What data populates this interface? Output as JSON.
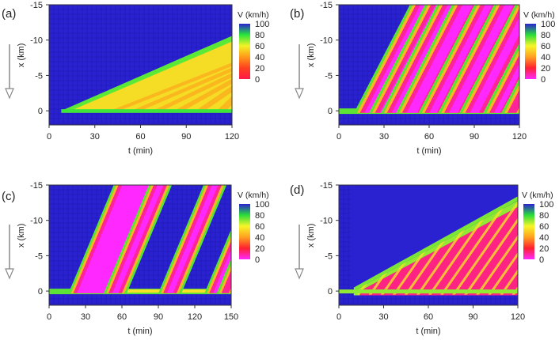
{
  "chart_data": [
    {
      "type": "heatmap",
      "panel_label": "(a)",
      "xlabel": "t (min)",
      "ylabel": "x (km)",
      "xlim": [
        0,
        120
      ],
      "ylim": [
        -15,
        2
      ],
      "xticks": [
        "0",
        "30",
        "60",
        "90",
        "120"
      ],
      "yticks": [
        "-15",
        "-10",
        "-5",
        "0"
      ],
      "colorbar": {
        "title": "V (km/h)",
        "ticks": [
          "100",
          "80",
          "60",
          "40",
          "20",
          "0"
        ],
        "range": [
          0,
          100
        ],
        "palette": "a"
      },
      "congestion": {
        "front_start_t": 8,
        "front_end_t": 120,
        "front_end_x": -10,
        "bottleneck_x": 0,
        "dense_core": true
      },
      "jams": []
    },
    {
      "type": "heatmap",
      "panel_label": "(b)",
      "xlabel": "t (min)",
      "ylabel": "x (km)",
      "xlim": [
        0,
        120
      ],
      "ylim": [
        -15,
        2
      ],
      "xticks": [
        "0",
        "30",
        "60",
        "90",
        "120"
      ],
      "yticks": [
        "-15",
        "-10",
        "-5",
        "0"
      ],
      "colorbar": {
        "title": "V (km/h)",
        "ticks": [
          "100",
          "80",
          "60",
          "40",
          "20",
          "0"
        ],
        "range": [
          0,
          100
        ],
        "palette": "b"
      },
      "congestion": {
        "bottleneck_x": 0
      },
      "jams": [
        {
          "t0": 12,
          "t1": 28
        },
        {
          "t0": 22,
          "t1": 40
        },
        {
          "t0": 30,
          "t1": 46
        },
        {
          "t0": 40,
          "t1": 57
        },
        {
          "t0": 55,
          "t1": 70
        },
        {
          "t0": 68,
          "t1": 84
        },
        {
          "t0": 82,
          "t1": 98
        },
        {
          "t0": 98,
          "t1": 112
        },
        {
          "t0": 110,
          "t1": 120
        }
      ]
    },
    {
      "type": "heatmap",
      "panel_label": "(c)",
      "xlabel": "t (min)",
      "ylabel": "x (km)",
      "xlim": [
        0,
        150
      ],
      "ylim": [
        -15,
        2
      ],
      "xticks": [
        "0",
        "30",
        "60",
        "90",
        "120",
        "150"
      ],
      "yticks": [
        "-15",
        "-10",
        "-5",
        "0"
      ],
      "colorbar": {
        "title": "V (km/h)",
        "ticks": [
          "100",
          "80",
          "60",
          "40",
          "20",
          "0"
        ],
        "range": [
          0,
          100
        ],
        "palette": "b"
      },
      "congestion": {
        "bottleneck_x": 0
      },
      "jams": [
        {
          "t0": 18,
          "t1": 52
        },
        {
          "t0": 47,
          "t1": 62
        },
        {
          "t0": 92,
          "t1": 107
        },
        {
          "t0": 130,
          "t1": 143
        },
        {
          "t0": 140,
          "t1": 150
        }
      ]
    },
    {
      "type": "heatmap",
      "panel_label": "(d)",
      "xlabel": "t (min)",
      "ylabel": "x (km)",
      "xlim": [
        0,
        120
      ],
      "ylim": [
        -15,
        2
      ],
      "xticks": [
        "0",
        "30",
        "60",
        "90",
        "120"
      ],
      "yticks": [
        "-15",
        "-10",
        "-5",
        "0"
      ],
      "colorbar": {
        "title": "V (km/h)",
        "ticks": [
          "100",
          "80",
          "60",
          "40",
          "20",
          "0"
        ],
        "range": [
          0,
          100
        ],
        "palette": "b"
      },
      "congestion": {
        "front_start_t": 10,
        "front_end_t": 120,
        "front_end_x": -12.5,
        "bottleneck_x": 0,
        "striped": true
      },
      "jams": []
    }
  ]
}
